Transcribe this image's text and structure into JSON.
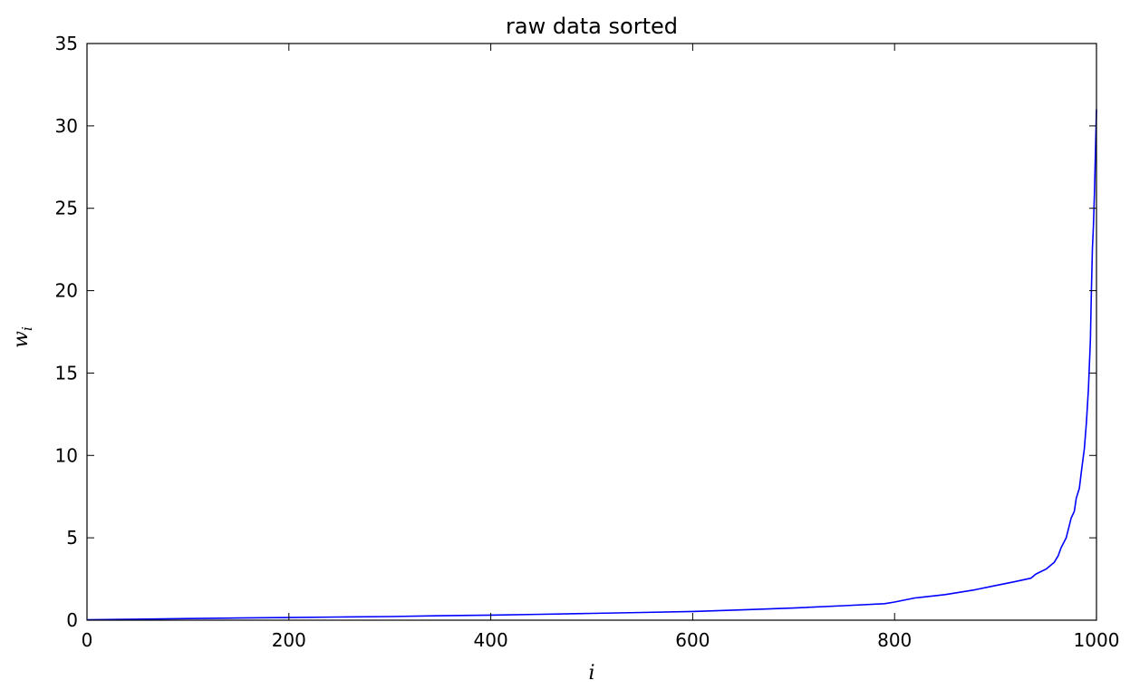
{
  "chart_data": {
    "type": "line",
    "title": "raw data sorted",
    "xlabel": "i",
    "ylabel": "w",
    "ylabel_subscript": "i",
    "xlim": [
      0,
      1000
    ],
    "ylim": [
      0,
      35
    ],
    "xticks": [
      0,
      200,
      400,
      600,
      800,
      1000
    ],
    "yticks": [
      0,
      5,
      10,
      15,
      20,
      25,
      30,
      35
    ],
    "xtick_labels": [
      "0",
      "200",
      "400",
      "600",
      "800",
      "1000"
    ],
    "ytick_labels": [
      "0",
      "5",
      "10",
      "15",
      "20",
      "25",
      "30",
      "35"
    ],
    "grid": false,
    "line_color": "#0000ff",
    "series": [
      {
        "x": [
          0,
          50,
          100,
          150,
          200,
          250,
          300,
          350,
          400,
          450,
          500,
          550,
          600,
          650,
          700,
          750,
          790,
          800,
          820,
          850,
          880,
          900,
          920,
          935,
          940,
          950,
          958,
          962,
          965,
          970,
          975,
          978,
          980,
          983,
          985,
          988,
          990,
          992,
          994,
          995,
          996,
          997,
          998,
          999,
          1000
        ],
        "y": [
          0.02,
          0.06,
          0.1,
          0.13,
          0.16,
          0.19,
          0.22,
          0.27,
          0.31,
          0.36,
          0.41,
          0.47,
          0.53,
          0.63,
          0.74,
          0.88,
          1.0,
          1.1,
          1.35,
          1.55,
          1.85,
          2.1,
          2.35,
          2.55,
          2.8,
          3.1,
          3.5,
          3.9,
          4.4,
          5.0,
          6.2,
          6.6,
          7.4,
          8.0,
          9.0,
          10.4,
          12.0,
          14.0,
          17.0,
          20.0,
          22.5,
          24.0,
          26.0,
          28.5,
          31.0
        ]
      }
    ]
  }
}
